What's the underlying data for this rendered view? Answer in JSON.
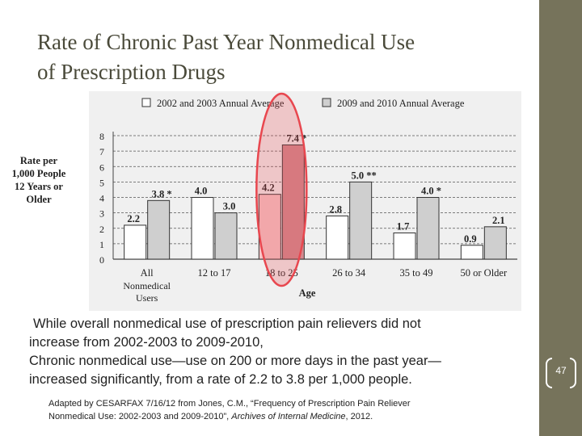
{
  "slide": {
    "title_line1": "Rate of Chronic Past Year Nonmedical Use",
    "title_line2": "of Prescription Drugs",
    "page_number": "47",
    "body": {
      "line1": "While overall nonmedical use of prescription pain relievers did not",
      "line2": "increase from 2002-2003 to 2009-2010,",
      "line3": "Chronic nonmedical use—use on 200 or more days in the past year—",
      "line4": "increased significantly, from a rate of 2.2 to 3.8 per 1,000 people."
    },
    "citation": {
      "line1": "Adapted by CESARFAX 7/16/12 from Jones, C.M., “Frequency of Prescription Pain Reliever",
      "line2_prefix": "Nonmedical Use: 2002-2003 and 2009-2010”, ",
      "line2_journal": "Archives of Internal Medicine",
      "line2_suffix": ", 2012."
    },
    "colors": {
      "sidebar": "#76735b",
      "title": "#4a4a3a",
      "bar_2002": "#ffffff",
      "bar_2009": "#cfcfcf",
      "highlight": "#e8474f"
    }
  },
  "chart_data": {
    "type": "bar",
    "ylabel": "Rate per 1,000 People 12 Years or Older",
    "xlabel": "Age",
    "ylim": [
      0,
      8
    ],
    "y_ticks": [
      0,
      1,
      2,
      3,
      4,
      5,
      6,
      7,
      8
    ],
    "grid": true,
    "legend_position": "top",
    "categories": [
      "All Nonmedical Users",
      "12 to 17",
      "18 to 25",
      "26 to 34",
      "35 to 49",
      "50 or Older"
    ],
    "series": [
      {
        "name": "2002 and 2003 Annual Average",
        "values": [
          2.2,
          4.0,
          4.2,
          2.8,
          1.7,
          0.9
        ],
        "labels": [
          "2.2",
          "4.0",
          "4.2",
          "2.8",
          "1.7",
          "0.9"
        ]
      },
      {
        "name": "2009 and 2010 Annual Average",
        "values": [
          3.8,
          3.0,
          7.4,
          5.0,
          4.0,
          2.1
        ],
        "labels": [
          "3.8 *",
          "3.0",
          "7.4 *",
          "5.0 **",
          "4.0 *",
          "2.1"
        ]
      }
    ],
    "highlighted_category": "18 to 25"
  }
}
